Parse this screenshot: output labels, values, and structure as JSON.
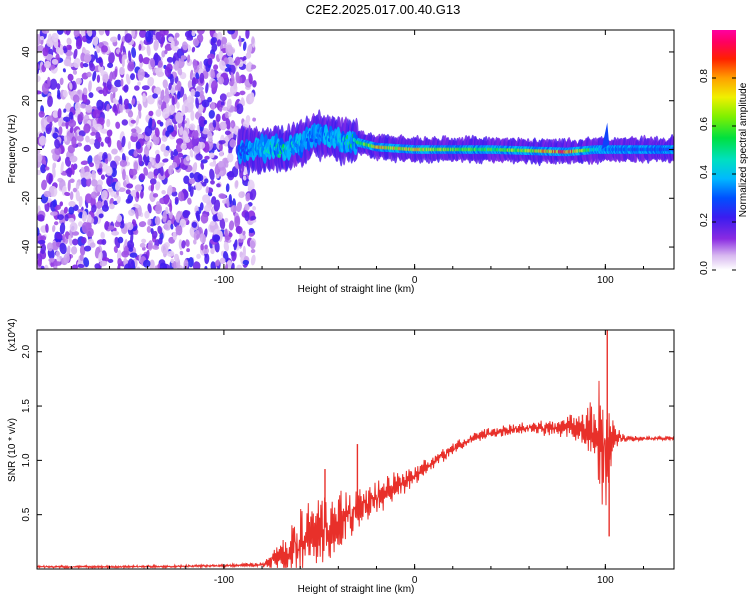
{
  "title": "C2E2.2025.017.00.40.G13",
  "chart_data": [
    {
      "type": "heatmap",
      "xlabel": "Height of straight line (km)",
      "ylabel": "Frequency (Hz)",
      "xlim": [
        -198,
        136
      ],
      "ylim": [
        -49,
        49
      ],
      "xticks": [
        -100,
        0,
        100
      ],
      "yticks": [
        -40,
        -20,
        0,
        20,
        40
      ],
      "colorbar": {
        "label": "Normalized spectral amplitude",
        "range": [
          0,
          1
        ],
        "ticks": [
          "0.0",
          "0.2",
          "0.4",
          "0.6",
          "0.8"
        ]
      },
      "noise_region_km": [
        -198,
        -88
      ],
      "ridge": {
        "x_km": [
          -90,
          -80,
          -70,
          -60,
          -55,
          -50,
          -40,
          -30,
          -20,
          0,
          20,
          40,
          60,
          80,
          95,
          100,
          120,
          136
        ],
        "freq_hz": [
          0,
          0,
          0,
          2,
          5,
          6,
          4,
          3,
          1,
          0,
          0,
          0,
          -0.5,
          -1,
          0,
          0,
          0,
          0
        ],
        "amplitude": [
          0.3,
          0.45,
          0.55,
          0.4,
          0.35,
          0.35,
          0.45,
          0.6,
          0.8,
          0.8,
          0.7,
          0.6,
          0.75,
          0.95,
          0.5,
          0.35,
          0.3,
          0.3
        ]
      }
    },
    {
      "type": "line",
      "xlabel": "Height of straight line (km)",
      "ylabel": "SNR (10 * v/v)",
      "y_multiplier": "(x10^4)",
      "xlim": [
        -198,
        136
      ],
      "ylim": [
        0,
        2.2
      ],
      "xticks": [
        -100,
        0,
        100
      ],
      "yticks": [
        0.5,
        1.0,
        1.5,
        2.0
      ],
      "series": [
        {
          "color": "#e8302a",
          "x": [
            -198,
            -150,
            -100,
            -80,
            -70,
            -60,
            -50,
            -40,
            -30,
            -20,
            -10,
            0,
            10,
            20,
            30,
            40,
            50,
            60,
            70,
            80,
            90,
            95,
            98,
            100,
            102,
            105,
            110,
            120,
            136
          ],
          "y": [
            0.02,
            0.02,
            0.03,
            0.04,
            0.12,
            0.25,
            0.35,
            0.45,
            0.55,
            0.65,
            0.75,
            0.85,
            1.0,
            1.1,
            1.2,
            1.25,
            1.28,
            1.3,
            1.3,
            1.3,
            1.3,
            1.28,
            1.2,
            1.15,
            1.2,
            1.22,
            1.2,
            1.2,
            1.2
          ],
          "noise": [
            0.01,
            0.01,
            0.01,
            0.02,
            0.15,
            0.28,
            0.3,
            0.25,
            0.2,
            0.15,
            0.12,
            0.08,
            0.06,
            0.05,
            0.05,
            0.05,
            0.05,
            0.05,
            0.07,
            0.1,
            0.18,
            0.35,
            0.55,
            0.7,
            0.45,
            0.1,
            0.03,
            0.02,
            0.02
          ]
        }
      ],
      "peaks": [
        {
          "x": -47,
          "y": 0.92
        },
        {
          "x": -30,
          "y": 1.15
        },
        {
          "x": 88,
          "y": 1.42
        },
        {
          "x": 101,
          "y": 2.2
        },
        {
          "x": 102,
          "y": 0.3
        }
      ]
    }
  ]
}
